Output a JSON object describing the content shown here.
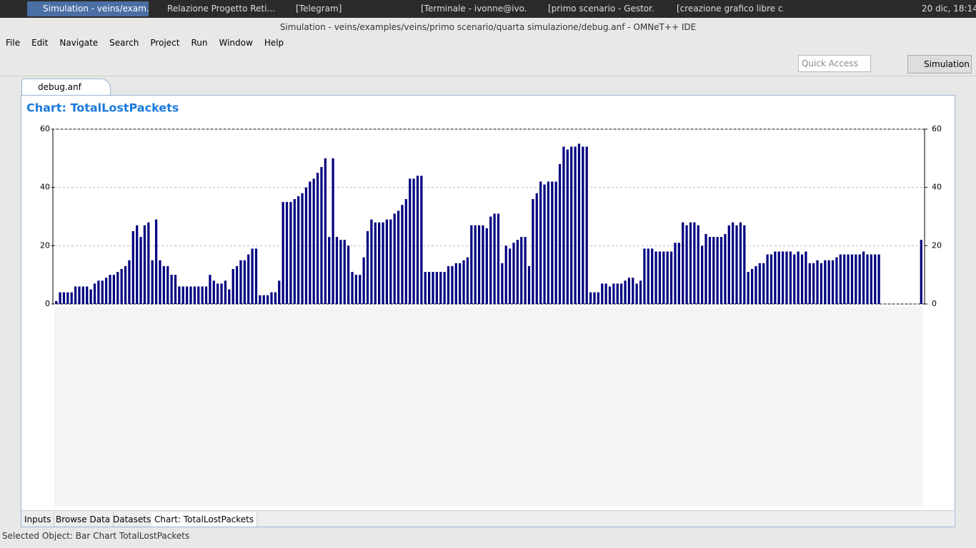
{
  "ui": {
    "taskbar": [
      "Simulation - veins/exam...",
      "Relazione Progetto Reti...",
      "[Telegram]",
      "[Terminale - ivonne@ivo...",
      "[primo scenario - Gestor...",
      "[creazione grafico libre c..."
    ],
    "clock": "20 dic, 18:14",
    "window_title": "Simulation - veins/examples/veins/primo scenario/quarta simulazione/debug.anf - OMNeT++ IDE",
    "menu": [
      "File",
      "Edit",
      "Navigate",
      "Search",
      "Project",
      "Run",
      "Window",
      "Help"
    ],
    "quick_access": "Quick Access",
    "perspective": "Simulation",
    "editor_tab": "debug.anf",
    "bottom_tabs": [
      "Inputs",
      "Browse Data",
      "Datasets",
      "Chart: TotalLostPackets"
    ],
    "status": "Selected Object: Bar Chart TotalLostPackets"
  },
  "chart_data": {
    "type": "bar",
    "title": "Chart: TotalLostPackets",
    "color": "#000080",
    "ylim": [
      0,
      60
    ],
    "yticks": [
      0,
      20,
      40,
      60
    ],
    "grid": true,
    "values": [
      1,
      4,
      4,
      4,
      4,
      6,
      6,
      6,
      6,
      5,
      7,
      8,
      8,
      9,
      10,
      10,
      11,
      12,
      13,
      15,
      25,
      27,
      23,
      27,
      28,
      15,
      29,
      15,
      13,
      13,
      10,
      10,
      6,
      6,
      6,
      6,
      6,
      6,
      6,
      6,
      10,
      8,
      7,
      7,
      8,
      5,
      12,
      13,
      15,
      15,
      17,
      19,
      19,
      3,
      3,
      3,
      4,
      4,
      8,
      35,
      35,
      35,
      36,
      37,
      38,
      40,
      42,
      43,
      45,
      47,
      50,
      23,
      50,
      23,
      22,
      22,
      20,
      11,
      10,
      10,
      16,
      25,
      29,
      28,
      28,
      28,
      29,
      29,
      31,
      32,
      34,
      36,
      43,
      43,
      44,
      44,
      11,
      11,
      11,
      11,
      11,
      11,
      13,
      13,
      14,
      14,
      15,
      16,
      27,
      27,
      27,
      27,
      26,
      30,
      31,
      31,
      14,
      20,
      19,
      21,
      22,
      23,
      23,
      13,
      36,
      38,
      42,
      41,
      42,
      42,
      42,
      48,
      54,
      53,
      54,
      54,
      55,
      54,
      54,
      4,
      4,
      4,
      7,
      7,
      6,
      7,
      7,
      7,
      8,
      9,
      9,
      7,
      8,
      19,
      19,
      19,
      18,
      18,
      18,
      18,
      18,
      21,
      21,
      28,
      27,
      28,
      28,
      27,
      20,
      24,
      23,
      23,
      23,
      23,
      24,
      27,
      28,
      27,
      28,
      27,
      11,
      12,
      13,
      14,
      14,
      17,
      17,
      18,
      18,
      18,
      18,
      18,
      17,
      18,
      17,
      18,
      14,
      14,
      15,
      14,
      15,
      15,
      15,
      16,
      17,
      17,
      17,
      17,
      17,
      17,
      18,
      17,
      17,
      17,
      17,
      0,
      0,
      0,
      0,
      0,
      0,
      0,
      0,
      0,
      0,
      22
    ]
  }
}
